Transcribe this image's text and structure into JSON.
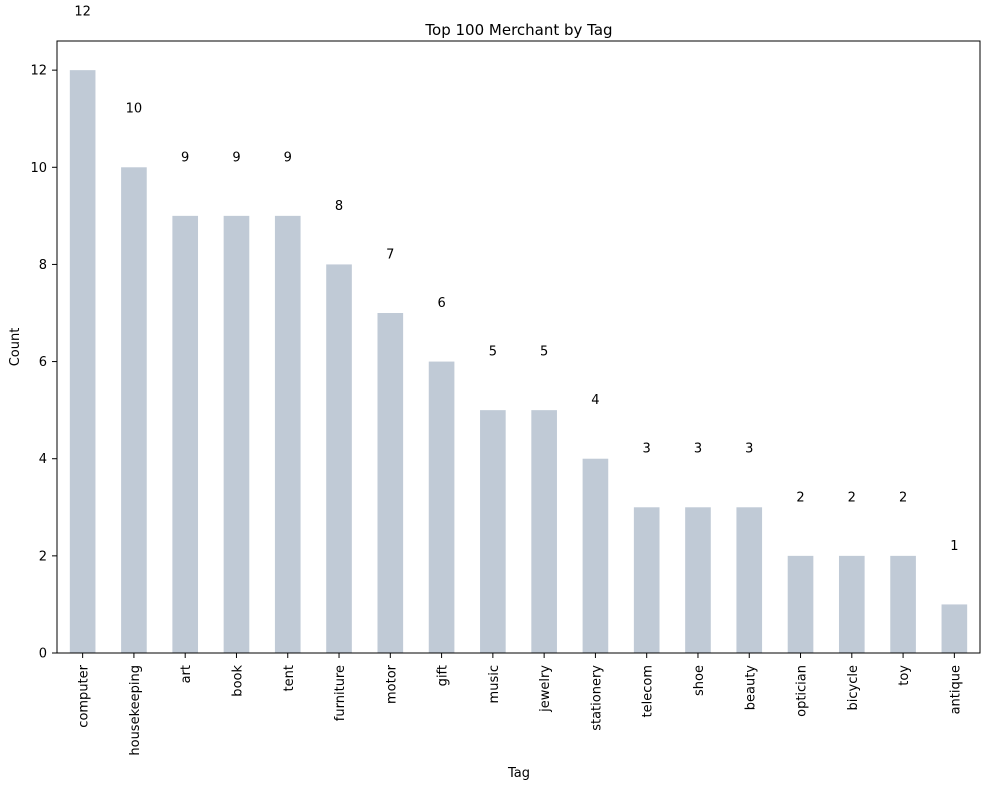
{
  "chart_data": {
    "type": "bar",
    "title": "Top 100 Merchant by Tag",
    "xlabel": "Tag",
    "ylabel": "Count",
    "categories": [
      "computer",
      "housekeeping",
      "art",
      "book",
      "tent",
      "furniture",
      "motor",
      "gift",
      "music",
      "jewelry",
      "stationery",
      "telecom",
      "shoe",
      "beauty",
      "optician",
      "bicycle",
      "toy",
      "antique"
    ],
    "values": [
      12,
      10,
      9,
      9,
      9,
      8,
      7,
      6,
      5,
      5,
      4,
      3,
      3,
      3,
      2,
      2,
      2,
      1
    ],
    "ylim": [
      0,
      12.6
    ],
    "yticks": [
      0,
      2,
      4,
      6,
      8,
      10,
      12
    ],
    "bar_color": "#c0cad6",
    "grid": false,
    "data_labels": true
  }
}
